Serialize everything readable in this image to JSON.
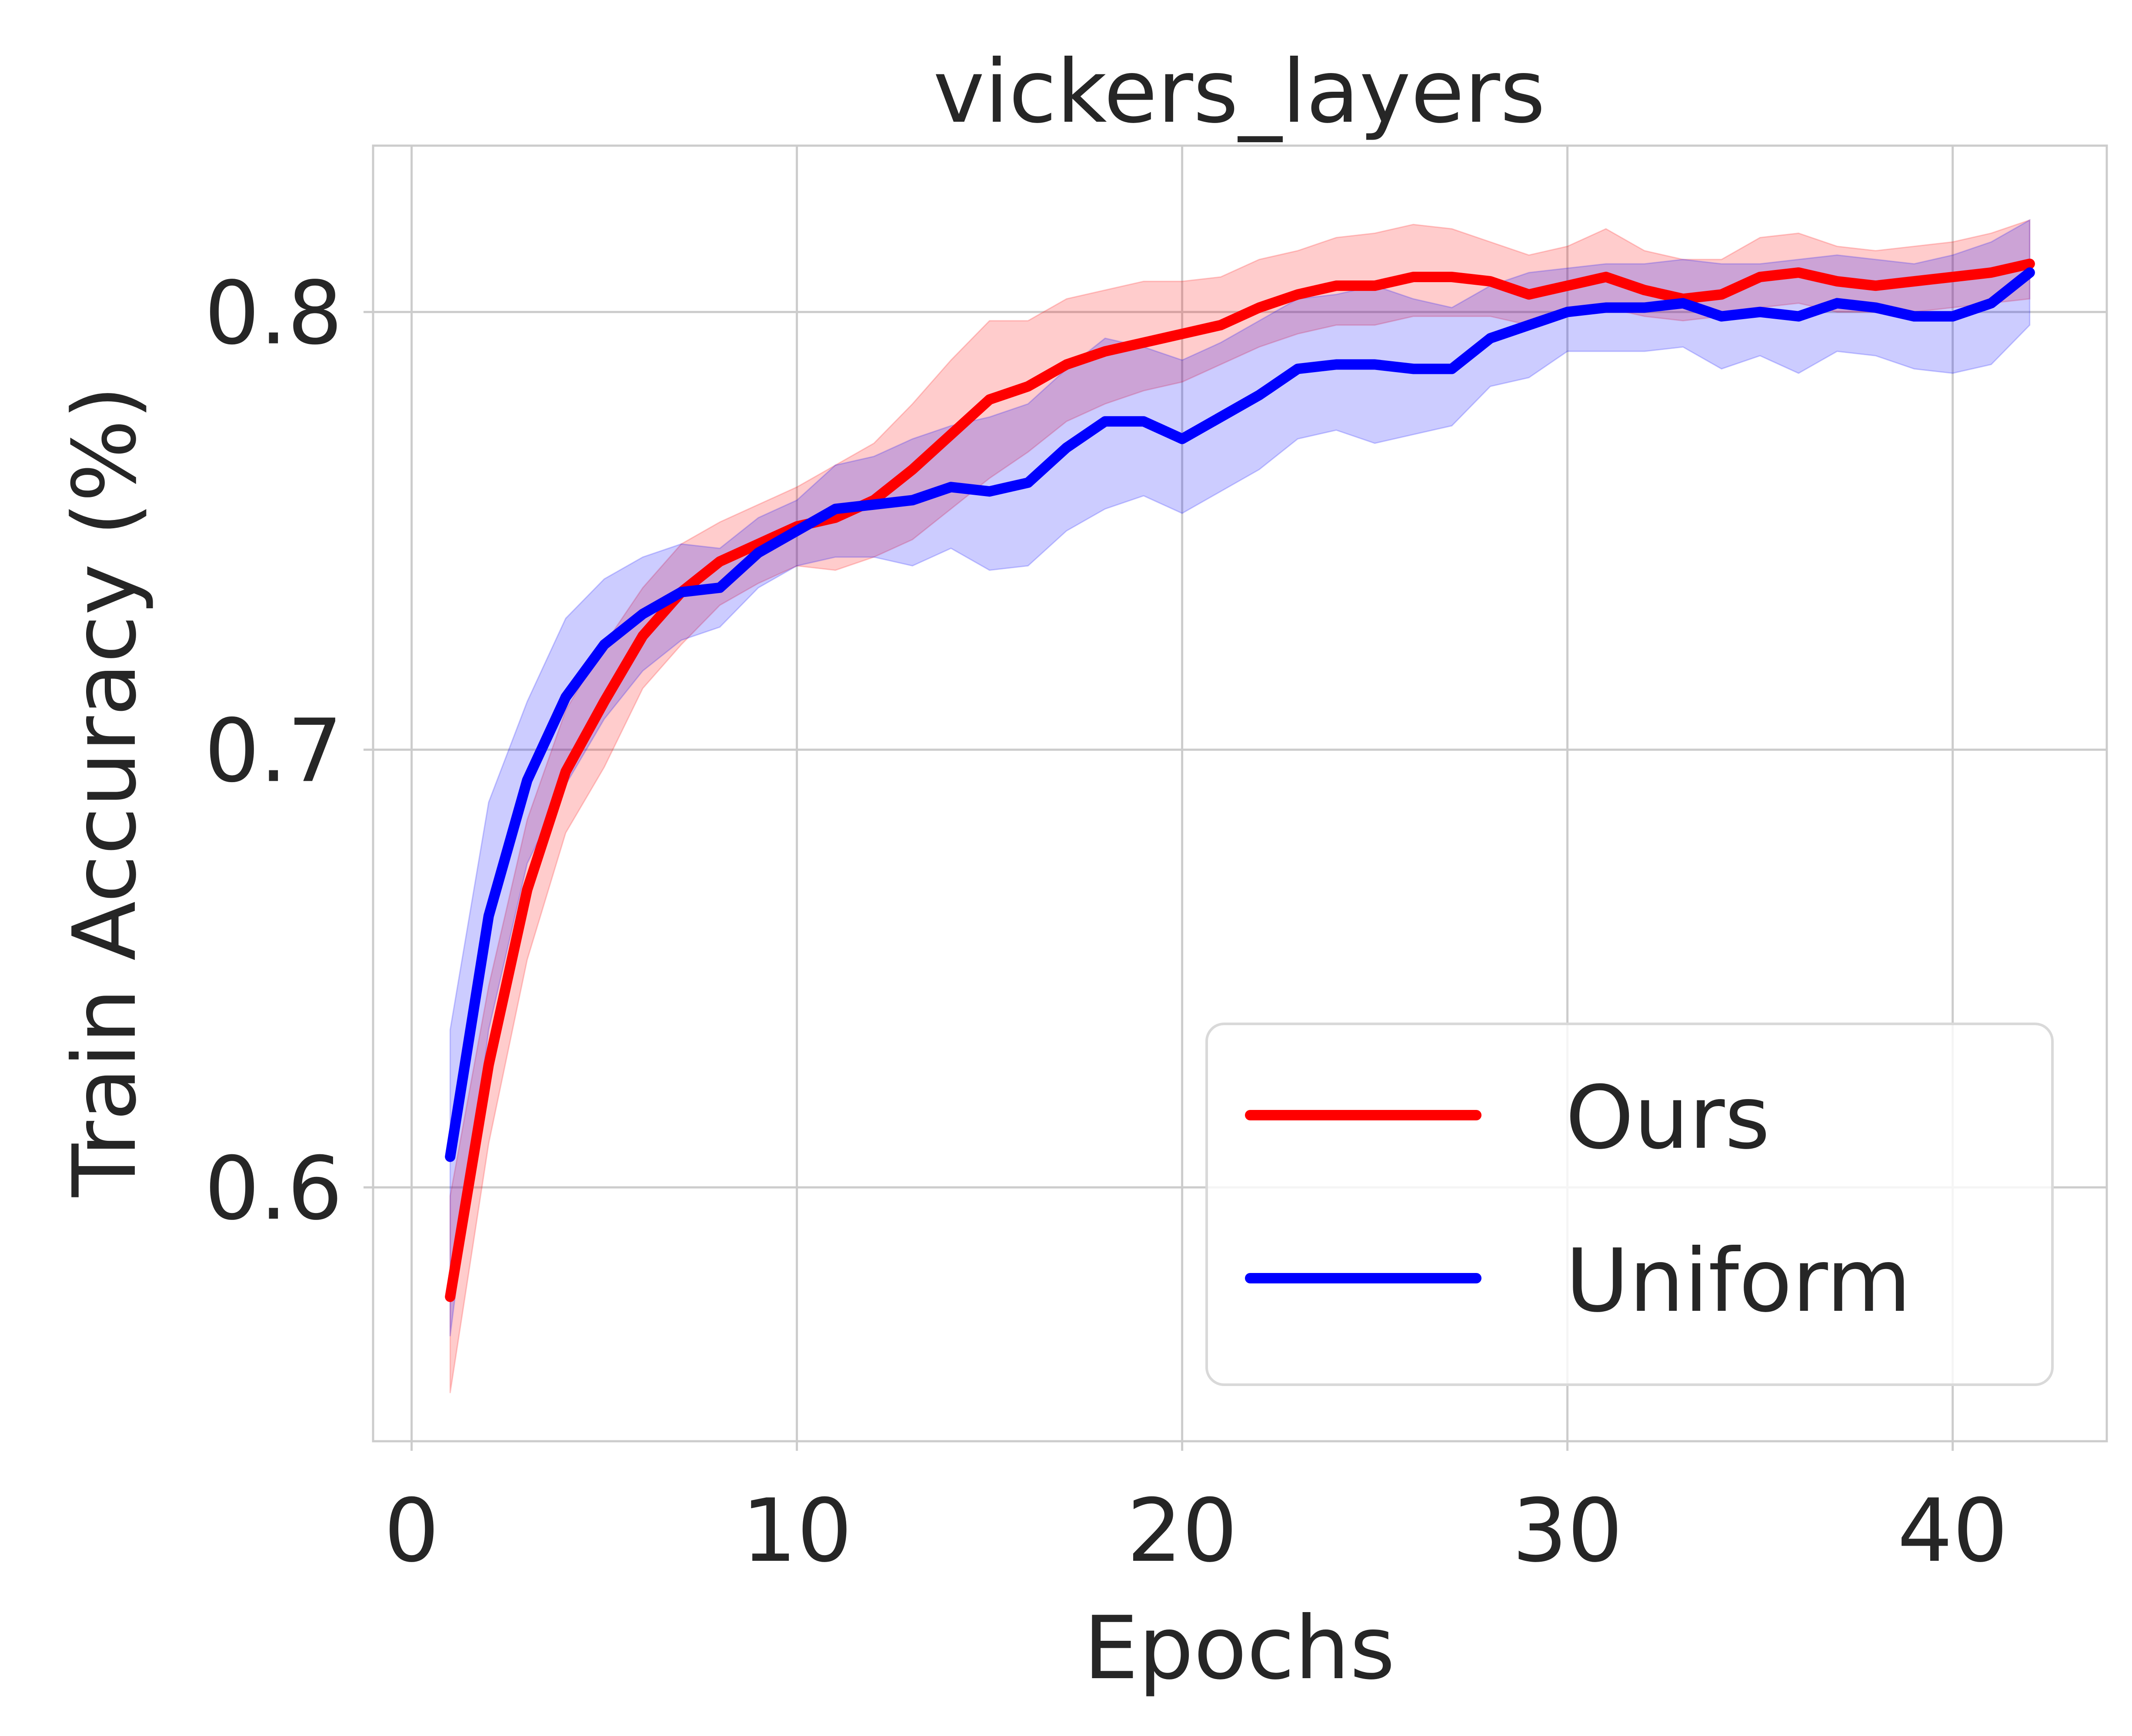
{
  "chart_data": {
    "type": "line",
    "title": "vickers_layers",
    "xlabel": "Epochs",
    "ylabel": "Train Accuracy (%)",
    "xlim": [
      -1,
      44
    ],
    "ylim": [
      0.542,
      0.838
    ],
    "xticks": [
      0,
      10,
      20,
      30,
      40
    ],
    "yticks": [
      0.6,
      0.7,
      0.8
    ],
    "xtick_labels": [
      "0",
      "10",
      "20",
      "30",
      "40"
    ],
    "ytick_labels": [
      "0.6",
      "0.7",
      "0.8"
    ],
    "grid": true,
    "legend_position": "lower-right",
    "x": [
      1,
      2,
      3,
      4,
      5,
      6,
      7,
      8,
      9,
      10,
      11,
      12,
      13,
      14,
      15,
      16,
      17,
      18,
      19,
      20,
      21,
      22,
      23,
      24,
      25,
      26,
      27,
      28,
      29,
      30,
      31,
      32,
      33,
      34,
      35,
      36,
      37,
      38,
      39,
      40,
      41,
      42
    ],
    "series": [
      {
        "name": "Ours",
        "color": "#ff0000",
        "values": [
          0.575,
          0.628,
          0.668,
          0.695,
          0.711,
          0.726,
          0.736,
          0.743,
          0.747,
          0.751,
          0.753,
          0.757,
          0.764,
          0.772,
          0.78,
          0.783,
          0.788,
          0.791,
          0.793,
          0.795,
          0.797,
          0.801,
          0.804,
          0.806,
          0.806,
          0.808,
          0.808,
          0.807,
          0.804,
          0.806,
          0.808,
          0.805,
          0.803,
          0.804,
          0.808,
          0.809,
          0.807,
          0.806,
          0.807,
          0.808,
          0.809,
          0.811
        ],
        "lower": [
          0.553,
          0.61,
          0.652,
          0.681,
          0.696,
          0.714,
          0.724,
          0.733,
          0.738,
          0.742,
          0.741,
          0.744,
          0.748,
          0.755,
          0.762,
          0.768,
          0.775,
          0.779,
          0.782,
          0.784,
          0.788,
          0.792,
          0.795,
          0.797,
          0.797,
          0.799,
          0.799,
          0.799,
          0.797,
          0.799,
          0.801,
          0.799,
          0.798,
          0.799,
          0.801,
          0.802,
          0.8,
          0.8,
          0.8,
          0.801,
          0.802,
          0.803
        ],
        "upper": [
          0.598,
          0.646,
          0.684,
          0.709,
          0.724,
          0.737,
          0.747,
          0.752,
          0.756,
          0.76,
          0.765,
          0.77,
          0.779,
          0.789,
          0.798,
          0.798,
          0.803,
          0.805,
          0.807,
          0.807,
          0.808,
          0.812,
          0.814,
          0.817,
          0.818,
          0.82,
          0.819,
          0.816,
          0.813,
          0.815,
          0.819,
          0.814,
          0.812,
          0.812,
          0.817,
          0.818,
          0.815,
          0.814,
          0.815,
          0.816,
          0.818,
          0.821
        ]
      },
      {
        "name": "Uniform",
        "color": "#0000ff",
        "values": [
          0.607,
          0.662,
          0.693,
          0.712,
          0.724,
          0.731,
          0.736,
          0.737,
          0.745,
          0.75,
          0.755,
          0.756,
          0.757,
          0.76,
          0.759,
          0.761,
          0.769,
          0.775,
          0.775,
          0.771,
          0.776,
          0.781,
          0.787,
          0.788,
          0.788,
          0.787,
          0.787,
          0.794,
          0.797,
          0.8,
          0.801,
          0.801,
          0.802,
          0.799,
          0.8,
          0.799,
          0.802,
          0.801,
          0.799,
          0.799,
          0.802,
          0.809
        ],
        "lower": [
          0.566,
          0.636,
          0.674,
          0.692,
          0.707,
          0.718,
          0.725,
          0.728,
          0.737,
          0.742,
          0.744,
          0.744,
          0.742,
          0.746,
          0.741,
          0.742,
          0.75,
          0.755,
          0.758,
          0.754,
          0.759,
          0.764,
          0.771,
          0.773,
          0.77,
          0.772,
          0.774,
          0.783,
          0.785,
          0.791,
          0.791,
          0.791,
          0.792,
          0.787,
          0.79,
          0.786,
          0.791,
          0.79,
          0.787,
          0.786,
          0.788,
          0.797
        ],
        "upper": [
          0.636,
          0.688,
          0.711,
          0.73,
          0.739,
          0.744,
          0.747,
          0.746,
          0.753,
          0.757,
          0.765,
          0.767,
          0.771,
          0.774,
          0.776,
          0.779,
          0.787,
          0.794,
          0.792,
          0.789,
          0.793,
          0.798,
          0.803,
          0.804,
          0.806,
          0.803,
          0.801,
          0.806,
          0.809,
          0.81,
          0.811,
          0.811,
          0.812,
          0.811,
          0.811,
          0.812,
          0.813,
          0.812,
          0.811,
          0.813,
          0.816,
          0.821
        ]
      }
    ]
  }
}
